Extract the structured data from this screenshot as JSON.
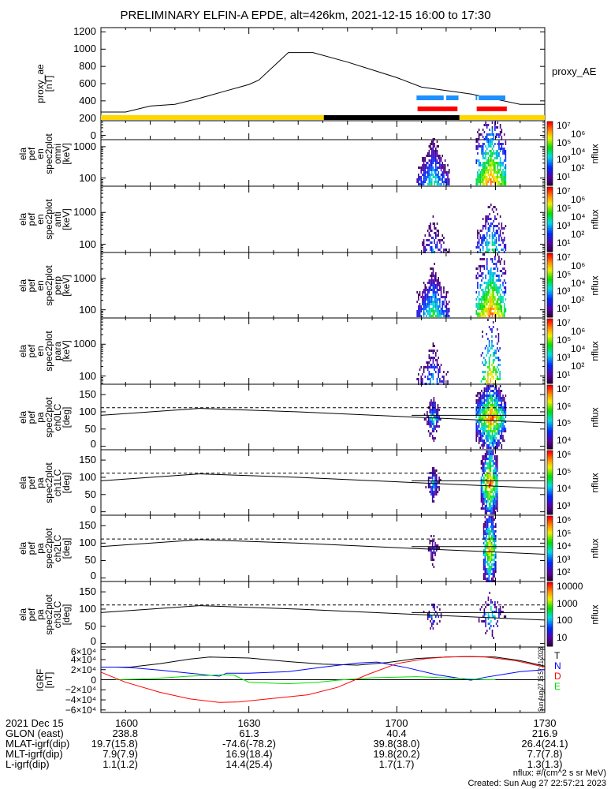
{
  "title": "PRELIMINARY ELFIN-A EPDE, alt=426km, 2021-12-15 16:00 to 17:30",
  "colors": {
    "yellow": "#ffd700",
    "black": "#000000",
    "blue_bar": "#1e90ff",
    "red_bar": "#ff0000",
    "igrf_T": "#000000",
    "igrf_N": "#0000ff",
    "igrf_D": "#ff0000",
    "igrf_E": "#00e000"
  },
  "chart_data": [
    {
      "type": "line",
      "name": "proxy_ae",
      "ylabel": [
        "proxy_ae",
        "[nT]"
      ],
      "legend": "proxy_AE",
      "ylim": [
        -50,
        1250
      ],
      "yticks": [
        "1200",
        "1000",
        "800",
        "600",
        "400",
        "200",
        "0"
      ],
      "ytick_values": [
        1200,
        1000,
        800,
        600,
        400,
        200,
        0
      ],
      "x_minutes": [
        0,
        5,
        10,
        15,
        20,
        25,
        30,
        32,
        38,
        43,
        50,
        55,
        60,
        65,
        70,
        75,
        80,
        85,
        90
      ],
      "values": [
        270,
        270,
        340,
        360,
        430,
        510,
        590,
        640,
        960,
        960,
        850,
        760,
        670,
        560,
        520,
        480,
        420,
        360,
        360
      ]
    },
    {
      "type": "bar",
      "name": "status_bars",
      "segments": [
        {
          "color": "blue_bar",
          "row": 1,
          "start": 64,
          "end": 69.5
        },
        {
          "color": "blue_bar",
          "row": 1,
          "start": 70,
          "end": 72.5
        },
        {
          "color": "blue_bar",
          "row": 1,
          "start": 76,
          "end": 76.3
        },
        {
          "color": "blue_bar",
          "row": 1,
          "start": 76.6,
          "end": 82
        },
        {
          "color": "red_bar",
          "row": 2,
          "start": 64.2,
          "end": 72.3
        },
        {
          "color": "red_bar",
          "row": 2,
          "start": 76.2,
          "end": 82.3
        },
        {
          "color": "yellow",
          "row": 3,
          "start": 0,
          "end": 45.2
        },
        {
          "color": "black",
          "row": 3,
          "start": 45.2,
          "end": 72.7
        },
        {
          "color": "yellow",
          "row": 3,
          "start": 72.7,
          "end": 90
        }
      ]
    },
    {
      "type": "heatmap",
      "name": "en_omni",
      "ylabel": [
        "ela",
        "pef",
        "en",
        "spec2plot",
        "omni",
        "[keV]"
      ],
      "yticks": [
        "1000",
        "100"
      ],
      "ytick_values": [
        1000,
        100
      ],
      "ylim": [
        55,
        6700
      ],
      "ylog": true,
      "cbar": {
        "ticks": [
          "10⁷",
          "10⁶",
          "10⁵",
          "10⁴",
          "10³",
          "10²",
          "10¹"
        ],
        "label": "nflux",
        "log_range": [
          1,
          7
        ]
      },
      "regions": [
        {
          "start": 64,
          "end": 70.5,
          "peak": 4.5
        },
        {
          "start": 76,
          "end": 82,
          "peak": 6.8
        }
      ]
    },
    {
      "type": "heatmap",
      "name": "en_anti",
      "ylabel": [
        "ela",
        "pef",
        "en",
        "spec2plot",
        "anti",
        "[keV]"
      ],
      "yticks": [
        "1000",
        "100"
      ],
      "ytick_values": [
        1000,
        100
      ],
      "ylim": [
        55,
        6700
      ],
      "ylog": true,
      "cbar": {
        "ticks": [
          "10⁷",
          "10⁶",
          "10⁵",
          "10⁴",
          "10³",
          "10²",
          "10¹"
        ],
        "label": "nflux",
        "log_range": [
          1,
          7
        ]
      },
      "regions": [
        {
          "start": 64,
          "end": 70.5,
          "peak": 3.5,
          "sparse": true
        },
        {
          "start": 76,
          "end": 82,
          "peak": 4.8,
          "sparse": true
        }
      ]
    },
    {
      "type": "heatmap",
      "name": "en_perp",
      "ylabel": [
        "ela",
        "pef",
        "en",
        "spec2plot",
        "perp",
        "[keV]"
      ],
      "yticks": [
        "1000",
        "100"
      ],
      "ytick_values": [
        1000,
        100
      ],
      "ylim": [
        55,
        6700
      ],
      "ylog": true,
      "cbar": {
        "ticks": [
          "10⁷",
          "10⁶",
          "10⁵",
          "10⁴",
          "10³",
          "10²",
          "10¹"
        ],
        "label": "nflux",
        "log_range": [
          1,
          7
        ]
      },
      "regions": [
        {
          "start": 64,
          "end": 70.5,
          "peak": 4.8
        },
        {
          "start": 76,
          "end": 82,
          "peak": 6.9
        }
      ]
    },
    {
      "type": "heatmap",
      "name": "en_para",
      "ylabel": [
        "ela",
        "pef",
        "en",
        "spec2plot",
        "para",
        "[keV]"
      ],
      "yticks": [
        "1000",
        "100"
      ],
      "ytick_values": [
        1000,
        100
      ],
      "ylim": [
        55,
        6700
      ],
      "ylog": true,
      "cbar": {
        "ticks": [
          "10⁷",
          "10⁶",
          "10⁵",
          "10⁴",
          "10³",
          "10²",
          "10¹"
        ],
        "label": "nflux",
        "log_range": [
          1,
          7
        ]
      },
      "regions": [
        {
          "start": 64,
          "end": 70.5,
          "peak": 3.8,
          "sparse": true
        },
        {
          "start": 77,
          "end": 81,
          "peak": 6.5,
          "sparse": true
        }
      ]
    },
    {
      "type": "heatmap",
      "name": "pa_ch0LC",
      "ylabel": [
        "ela",
        "pef",
        "pa",
        "spec2plot",
        "ch0LC",
        "[deg]"
      ],
      "yticks": [
        "150",
        "100",
        "50",
        "0"
      ],
      "ytick_values": [
        150,
        100,
        50,
        0
      ],
      "ylim": [
        -10,
        180
      ],
      "cbar": {
        "ticks": [
          "10⁷",
          "10⁶",
          "10⁵",
          "10⁴"
        ],
        "label": "nflux",
        "log_range": [
          3.6,
          7.2
        ]
      },
      "regions": [
        {
          "start": 65.5,
          "end": 69,
          "peak": 5.5
        },
        {
          "start": 76,
          "end": 82,
          "peak": 7
        }
      ]
    },
    {
      "type": "heatmap",
      "name": "pa_ch1LC",
      "ylabel": [
        "ela",
        "pef",
        "pa",
        "spec2plot",
        "ch1LC",
        "[deg]"
      ],
      "yticks": [
        "150",
        "100",
        "50",
        "0"
      ],
      "ytick_values": [
        150,
        100,
        50,
        0
      ],
      "ylim": [
        -10,
        180
      ],
      "cbar": {
        "ticks": [
          "10⁶",
          "10⁵",
          "10⁴",
          "10³"
        ],
        "label": "nflux",
        "log_range": [
          2.8,
          6.6
        ]
      },
      "regions": [
        {
          "start": 65.5,
          "end": 69,
          "peak": 4.5
        },
        {
          "start": 77,
          "end": 80.5,
          "peak": 6.4
        }
      ]
    },
    {
      "type": "heatmap",
      "name": "pa_ch2LC",
      "ylabel": [
        "ela",
        "pef",
        "pa",
        "spec2plot",
        "ch2LC",
        "[deg]"
      ],
      "yticks": [
        "150",
        "100",
        "50",
        "0"
      ],
      "ytick_values": [
        150,
        100,
        50,
        0
      ],
      "ylim": [
        -10,
        180
      ],
      "cbar": {
        "ticks": [
          "10⁶",
          "10⁵",
          "10⁴",
          "10³",
          "10²"
        ],
        "label": "nflux",
        "log_range": [
          1.8,
          6.2
        ]
      },
      "regions": [
        {
          "start": 65.5,
          "end": 69,
          "peak": 3.0
        },
        {
          "start": 77.5,
          "end": 80,
          "peak": 5.6
        }
      ]
    },
    {
      "type": "heatmap",
      "name": "pa_ch3LC",
      "ylabel": [
        "ela",
        "pef",
        "pa",
        "spec2plot",
        "ch3LC",
        "[deg]"
      ],
      "yticks": [
        "150",
        "100",
        "50",
        "0"
      ],
      "ytick_values": [
        150,
        100,
        50,
        0
      ],
      "ylim": [
        -10,
        180
      ],
      "cbar": {
        "ticks": [
          "10000",
          "1000",
          "100",
          "10"
        ],
        "label": "nflux",
        "log_range": [
          1,
          4.3
        ]
      },
      "regions": [
        {
          "start": 64,
          "end": 70.5,
          "peak": 2.2,
          "sparse": true
        },
        {
          "start": 76,
          "end": 82,
          "peak": 2.8,
          "sparse": true
        }
      ]
    },
    {
      "type": "line",
      "name": "igrf",
      "ylabel": [
        "IGRF",
        "[nT]"
      ],
      "ylim": [
        -65000,
        65000
      ],
      "yticks": [
        "6×10⁴",
        "4×10⁴",
        "2×10⁴",
        "0",
        "−2×10⁴",
        "−4×10⁴",
        "−6×10⁴"
      ],
      "ytick_values": [
        60000,
        40000,
        20000,
        0,
        -20000,
        -40000,
        -60000
      ],
      "legend": [
        "T",
        "N",
        "D",
        "E"
      ],
      "series": [
        {
          "name": "T",
          "color": "igrf_T",
          "x": [
            0,
            6,
            12,
            18,
            22,
            30,
            38,
            45,
            52,
            58,
            64,
            70,
            75,
            80,
            85,
            90
          ],
          "values": [
            25000,
            25000,
            32000,
            41000,
            45000,
            43000,
            36000,
            31000,
            29000,
            34000,
            42000,
            45000,
            46000,
            45000,
            38000,
            27000
          ]
        },
        {
          "name": "N",
          "color": "igrf_N",
          "x": [
            0,
            3,
            6,
            12,
            18,
            24,
            25.5,
            30,
            38,
            45,
            52,
            56,
            62,
            68,
            72,
            75,
            78,
            85,
            90
          ],
          "values": [
            25000,
            25000,
            24000,
            19000,
            13000,
            7000,
            13000,
            13000,
            16000,
            25000,
            33000,
            35000,
            24000,
            10000,
            4000,
            -1000,
            5000,
            16000,
            20000
          ]
        },
        {
          "name": "E",
          "color": "igrf_E",
          "x": [
            3,
            10,
            18,
            25,
            27,
            30,
            38,
            44,
            48,
            55,
            64,
            72,
            78,
            80
          ],
          "values": [
            0,
            2000,
            7000,
            10000,
            9000,
            -5000,
            -8000,
            -5000,
            -1000,
            4000,
            6000,
            3000,
            0,
            0
          ]
        },
        {
          "name": "D",
          "color": "igrf_D",
          "x": [
            0,
            5,
            12,
            18,
            24,
            28,
            34,
            42,
            48,
            54,
            60,
            66,
            70,
            74,
            78,
            84,
            90
          ],
          "values": [
            15000,
            -5000,
            -25000,
            -38000,
            -45000,
            -44000,
            -38000,
            -30000,
            -15000,
            10000,
            32000,
            42000,
            45000,
            46000,
            45000,
            38000,
            25000
          ]
        }
      ]
    },
    {
      "type": "line",
      "name": "pa_guides",
      "note_values": {
        "dashed": 112,
        "solid_flat": 90
      },
      "x_minutes": [
        0,
        20,
        40,
        60,
        90
      ],
      "values": [
        90,
        110,
        100,
        87,
        68
      ]
    }
  ],
  "xaxis": {
    "ticks": [
      "1600",
      "1630",
      "1700",
      "1730"
    ],
    "tick_minutes": [
      0,
      30,
      60,
      90
    ]
  },
  "ephemeris": {
    "rows": [
      {
        "label": "2021 Dec 15",
        "values": [
          "1600",
          "1630",
          "1700",
          "1730"
        ]
      },
      {
        "label": "GLON (east)",
        "values": [
          "238.8",
          "61.3",
          "40.4",
          "216.9"
        ]
      },
      {
        "label": "MLAT-igrf(dip)",
        "values": [
          "19.7(15.8)",
          "-74.6(-78.2)",
          "39.8(38.0)",
          "26.4(24.1)"
        ]
      },
      {
        "label": "MLT-igrf(dip)",
        "values": [
          "7.9(7.9)",
          "16.9(18.4)",
          "19.8(20.2)",
          "7.7(7.8)"
        ]
      },
      {
        "label": "L-igrf(dip)",
        "values": [
          "1.1(1.2)",
          "14.4(25.4)",
          "1.7(1.7)",
          "1.3(1.3)"
        ]
      }
    ]
  },
  "footer": {
    "units": "nflux: #/(cm^2 s sr MeV)",
    "created": "Created: Sun Aug 27 22:57:21 2023",
    "side_stamp": "Sun Aug 27 15:57:21 2023"
  }
}
